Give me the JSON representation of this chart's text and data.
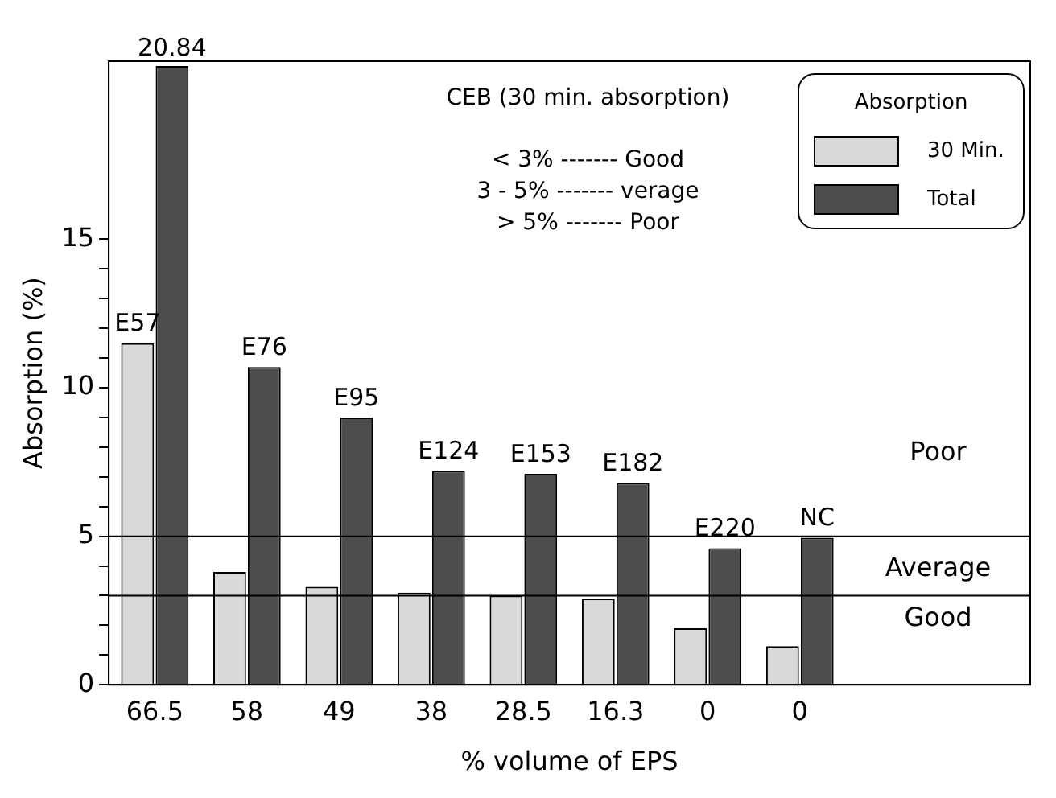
{
  "chart_data": {
    "type": "bar",
    "xlabel": "% volume of EPS",
    "ylabel": "Absorption (%)",
    "legend_title": "Absorption",
    "legend": "top right",
    "grid": false,
    "categories": [
      "66.5",
      "58",
      "49",
      "38",
      "28.5",
      "16.3",
      "0",
      "0",
      null,
      null
    ],
    "series": [
      {
        "name": "30 Min.",
        "color": "#d9d9d9",
        "values": [
          11.5,
          3.8,
          3.3,
          3.1,
          3.0,
          2.9,
          1.9,
          1.3,
          null,
          null
        ]
      },
      {
        "name": "Total",
        "color": "#4d4d4d",
        "values": [
          20.84,
          10.7,
          9.0,
          7.2,
          7.1,
          6.8,
          4.6,
          4.95,
          null,
          null
        ],
        "value_labels": [
          "20.84",
          null,
          null,
          null,
          null,
          null,
          null,
          null,
          null,
          null
        ]
      }
    ],
    "ylim": [
      0,
      21
    ],
    "yticks": [
      0,
      {
        "value": 1,
        "label": null
      },
      {
        "value": 2,
        "label": null
      },
      {
        "value": 3,
        "label": null
      },
      {
        "value": 4,
        "label": null
      },
      5,
      {
        "value": 6,
        "label": null
      },
      {
        "value": 7,
        "label": null
      },
      {
        "value": 8,
        "label": null
      },
      {
        "value": 9,
        "label": null
      },
      10,
      {
        "value": 11,
        "label": null
      },
      {
        "value": 12,
        "label": null
      },
      {
        "value": 13,
        "label": null
      },
      {
        "value": 14,
        "label": null
      },
      15
    ],
    "ref_lines": [
      {
        "axis": "y",
        "value": 3,
        "color": "#000000"
      },
      {
        "axis": "y",
        "value": 5,
        "color": "#000000"
      }
    ],
    "annotations": [
      {
        "text": "E57",
        "x": "66.5",
        "y": 11.5
      },
      {
        "text": "E76",
        "x": "58",
        "y": 10.7
      },
      {
        "text": "E95",
        "x": "49",
        "y": 9.0
      },
      {
        "text": "E124",
        "x": "38",
        "y": 7.2
      },
      {
        "text": "E153",
        "x": "28.5",
        "y": 7.1
      },
      {
        "text": "E182",
        "x": "16.3",
        "y": 6.8
      },
      "E220",
      "NC",
      "CEB (30 min. absorption)",
      "< 3% ------- Good",
      "3 - 5% ------- verage",
      "> 5% ------- Poor",
      "Poor",
      "Average",
      "Good"
    ]
  }
}
